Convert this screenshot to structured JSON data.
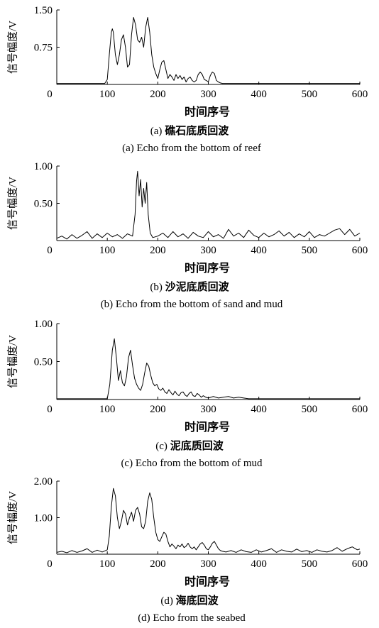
{
  "chart_data": [
    {
      "type": "line",
      "caption_prefix": "(a)",
      "caption_cn": "礁石底质回波",
      "caption_en": "(a) Echo from the bottom of reef",
      "xlabel": "时间序号",
      "ylabel": "信号幅度/V",
      "xlim": [
        0,
        600
      ],
      "ylim": [
        0,
        1.5
      ],
      "xticks": [
        0,
        100,
        200,
        300,
        400,
        500,
        600
      ],
      "yticks": [
        0.75,
        1.5
      ],
      "ytick_labels": [
        "0.75",
        "1.50"
      ],
      "series": [
        {
          "x": [
            0,
            95,
            100,
            104,
            108,
            110,
            112,
            116,
            120,
            124,
            128,
            132,
            136,
            140,
            144,
            148,
            152,
            156,
            160,
            164,
            168,
            172,
            176,
            180,
            184,
            188,
            192,
            196,
            200,
            204,
            208,
            212,
            216,
            220,
            224,
            228,
            232,
            236,
            240,
            244,
            248,
            252,
            256,
            260,
            264,
            268,
            272,
            276,
            280,
            284,
            288,
            292,
            296,
            300,
            304,
            308,
            312,
            316,
            320,
            324,
            328,
            335,
            600
          ],
          "y": [
            0.02,
            0.02,
            0.1,
            0.6,
            1.05,
            1.12,
            1.05,
            0.6,
            0.4,
            0.6,
            0.9,
            1.0,
            0.75,
            0.35,
            0.4,
            1.0,
            1.35,
            1.2,
            0.9,
            0.85,
            0.95,
            0.75,
            1.15,
            1.35,
            1.05,
            0.6,
            0.35,
            0.22,
            0.12,
            0.3,
            0.45,
            0.48,
            0.3,
            0.12,
            0.2,
            0.15,
            0.08,
            0.2,
            0.12,
            0.18,
            0.1,
            0.15,
            0.05,
            0.12,
            0.15,
            0.08,
            0.05,
            0.08,
            0.2,
            0.25,
            0.2,
            0.1,
            0.08,
            0.05,
            0.18,
            0.25,
            0.22,
            0.08,
            0.05,
            0.03,
            0.02,
            0.02,
            0.02
          ]
        }
      ]
    },
    {
      "type": "line",
      "caption_prefix": "(b)",
      "caption_cn": "沙泥底质回波",
      "caption_en": "(b) Echo from the bottom of sand and mud",
      "xlabel": "时间序号",
      "ylabel": "信号幅度/V",
      "xlim": [
        0,
        600
      ],
      "ylim": [
        0,
        1.0
      ],
      "xticks": [
        0,
        100,
        200,
        300,
        400,
        500,
        600
      ],
      "yticks": [
        0.5,
        1.0
      ],
      "ytick_labels": [
        "0.50",
        "1.00"
      ],
      "series": [
        {
          "x": [
            0,
            10,
            20,
            30,
            40,
            50,
            60,
            70,
            80,
            90,
            100,
            110,
            120,
            130,
            140,
            150,
            155,
            158,
            160,
            163,
            166,
            169,
            172,
            175,
            178,
            181,
            185,
            190,
            200,
            210,
            220,
            230,
            240,
            250,
            260,
            270,
            280,
            290,
            300,
            310,
            320,
            330,
            340,
            350,
            360,
            370,
            380,
            390,
            400,
            410,
            420,
            430,
            440,
            450,
            460,
            470,
            480,
            490,
            500,
            510,
            520,
            530,
            540,
            550,
            560,
            570,
            580,
            590,
            600
          ],
          "y": [
            0.03,
            0.06,
            0.02,
            0.08,
            0.03,
            0.07,
            0.12,
            0.03,
            0.09,
            0.04,
            0.1,
            0.05,
            0.08,
            0.03,
            0.09,
            0.06,
            0.35,
            0.8,
            0.93,
            0.6,
            0.82,
            0.45,
            0.7,
            0.5,
            0.78,
            0.35,
            0.1,
            0.04,
            0.06,
            0.1,
            0.04,
            0.12,
            0.05,
            0.09,
            0.03,
            0.11,
            0.06,
            0.04,
            0.12,
            0.05,
            0.08,
            0.03,
            0.15,
            0.06,
            0.1,
            0.04,
            0.14,
            0.07,
            0.04,
            0.1,
            0.05,
            0.08,
            0.13,
            0.06,
            0.11,
            0.04,
            0.09,
            0.05,
            0.12,
            0.04,
            0.08,
            0.06,
            0.1,
            0.14,
            0.16,
            0.08,
            0.15,
            0.06,
            0.1
          ]
        }
      ]
    },
    {
      "type": "line",
      "caption_prefix": "(c)",
      "caption_cn": "泥底质回波",
      "caption_en": "(c) Echo from the bottom of mud",
      "xlabel": "时间序号",
      "ylabel": "信号幅度/V",
      "xlim": [
        0,
        600
      ],
      "ylim": [
        0,
        1.0
      ],
      "xticks": [
        0,
        100,
        200,
        300,
        400,
        500,
        600
      ],
      "yticks": [
        0.5,
        1.0
      ],
      "ytick_labels": [
        "0.50",
        "1.00"
      ],
      "series": [
        {
          "x": [
            0,
            100,
            105,
            110,
            114,
            118,
            122,
            126,
            130,
            134,
            138,
            142,
            146,
            150,
            154,
            158,
            162,
            166,
            170,
            174,
            178,
            182,
            186,
            190,
            194,
            198,
            202,
            206,
            210,
            214,
            218,
            222,
            226,
            230,
            234,
            238,
            242,
            246,
            250,
            254,
            258,
            262,
            266,
            270,
            274,
            278,
            282,
            286,
            290,
            295,
            300,
            310,
            320,
            330,
            340,
            350,
            360,
            370,
            380,
            400,
            600
          ],
          "y": [
            0.01,
            0.01,
            0.2,
            0.65,
            0.8,
            0.55,
            0.25,
            0.38,
            0.22,
            0.18,
            0.3,
            0.55,
            0.65,
            0.45,
            0.28,
            0.2,
            0.15,
            0.12,
            0.2,
            0.35,
            0.48,
            0.44,
            0.32,
            0.22,
            0.18,
            0.2,
            0.14,
            0.12,
            0.15,
            0.1,
            0.08,
            0.13,
            0.09,
            0.06,
            0.11,
            0.07,
            0.05,
            0.09,
            0.1,
            0.06,
            0.04,
            0.08,
            0.1,
            0.05,
            0.04,
            0.08,
            0.06,
            0.03,
            0.05,
            0.03,
            0.02,
            0.04,
            0.02,
            0.03,
            0.04,
            0.02,
            0.03,
            0.02,
            0.01,
            0.01,
            0.01
          ]
        }
      ]
    },
    {
      "type": "line",
      "caption_prefix": "(d)",
      "caption_cn": "海底回波",
      "caption_en": "(d) Echo from the seabed",
      "xlabel": "时间序号",
      "ylabel": "信号幅度/V",
      "xlim": [
        0,
        600
      ],
      "ylim": [
        0,
        2.0
      ],
      "xticks": [
        0,
        100,
        200,
        300,
        400,
        500,
        600
      ],
      "yticks": [
        1.0,
        2.0
      ],
      "ytick_labels": [
        "1.00",
        "2.00"
      ],
      "series": [
        {
          "x": [
            0,
            10,
            20,
            30,
            40,
            50,
            60,
            70,
            80,
            90,
            100,
            104,
            108,
            112,
            116,
            120,
            124,
            128,
            132,
            136,
            140,
            144,
            148,
            152,
            156,
            160,
            164,
            168,
            172,
            176,
            180,
            184,
            188,
            192,
            196,
            200,
            204,
            208,
            212,
            216,
            220,
            224,
            228,
            232,
            236,
            240,
            244,
            248,
            252,
            256,
            260,
            264,
            268,
            272,
            276,
            280,
            284,
            288,
            292,
            296,
            300,
            304,
            308,
            312,
            316,
            320,
            324,
            328,
            335,
            345,
            355,
            365,
            375,
            385,
            395,
            405,
            415,
            425,
            435,
            445,
            455,
            465,
            475,
            485,
            495,
            505,
            515,
            525,
            535,
            545,
            555,
            565,
            575,
            585,
            595,
            600
          ],
          "y": [
            0.05,
            0.08,
            0.04,
            0.1,
            0.05,
            0.09,
            0.15,
            0.05,
            0.11,
            0.06,
            0.12,
            0.5,
            1.3,
            1.8,
            1.6,
            1.0,
            0.7,
            0.9,
            1.2,
            1.1,
            0.8,
            1.0,
            1.15,
            0.9,
            1.2,
            1.28,
            1.1,
            0.75,
            0.7,
            0.9,
            1.45,
            1.68,
            1.5,
            1.0,
            0.6,
            0.4,
            0.35,
            0.48,
            0.6,
            0.55,
            0.35,
            0.2,
            0.28,
            0.22,
            0.15,
            0.25,
            0.2,
            0.28,
            0.18,
            0.22,
            0.3,
            0.2,
            0.15,
            0.2,
            0.12,
            0.2,
            0.28,
            0.32,
            0.25,
            0.15,
            0.12,
            0.2,
            0.3,
            0.35,
            0.25,
            0.15,
            0.1,
            0.08,
            0.06,
            0.1,
            0.05,
            0.12,
            0.07,
            0.05,
            0.12,
            0.06,
            0.1,
            0.15,
            0.05,
            0.12,
            0.08,
            0.06,
            0.14,
            0.07,
            0.1,
            0.05,
            0.12,
            0.08,
            0.06,
            0.1,
            0.18,
            0.08,
            0.15,
            0.2,
            0.12,
            0.14
          ]
        }
      ]
    }
  ]
}
